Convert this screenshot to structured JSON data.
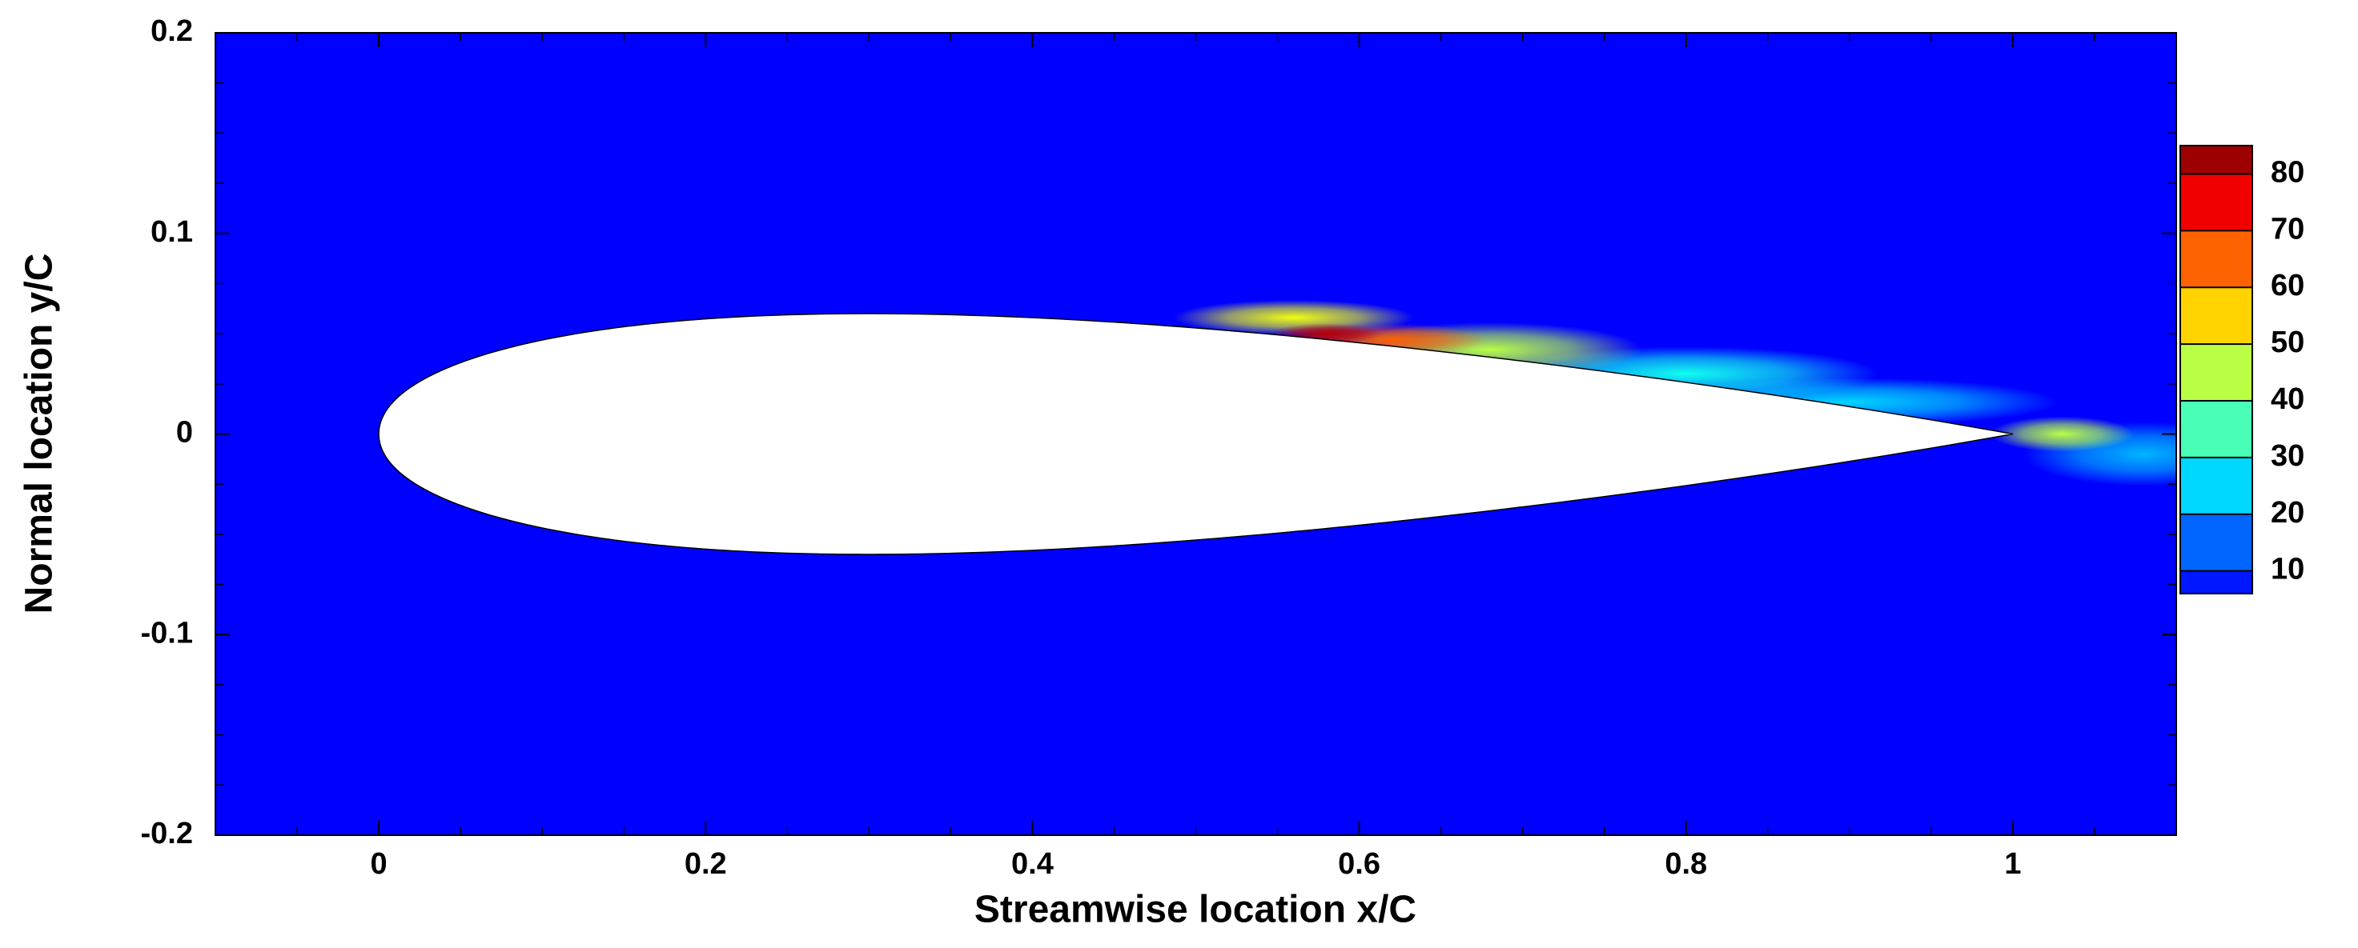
{
  "chart_data": {
    "type": "contour",
    "xlabel": "Streamwise location x/C",
    "ylabel": "Normal location y/C",
    "xlim": [
      -0.1,
      1.1
    ],
    "xticks": [
      0,
      0.2,
      0.4,
      0.6,
      0.8,
      1
    ],
    "ylim": [
      -0.2,
      0.2
    ],
    "yticks": [
      -0.2,
      -0.1,
      0,
      0.1,
      0.2
    ],
    "clim": [
      6,
      85
    ],
    "cticks": [
      10,
      20,
      30,
      40,
      50,
      60,
      70,
      80
    ],
    "points": [
      {
        "x": 1.08,
        "y": -0.01,
        "value": 22
      },
      {
        "x": 0.9,
        "y": 0.016,
        "value": 25
      },
      {
        "x": 0.8,
        "y": 0.03,
        "value": 30
      },
      {
        "x": 0.68,
        "y": 0.042,
        "value": 45
      },
      {
        "x": 1.03,
        "y": 0.0,
        "value": 45
      },
      {
        "x": 0.56,
        "y": 0.058,
        "value": 50
      },
      {
        "x": 0.62,
        "y": 0.047,
        "value": 65
      },
      {
        "x": 0.58,
        "y": 0.05,
        "value": 80
      }
    ]
  }
}
